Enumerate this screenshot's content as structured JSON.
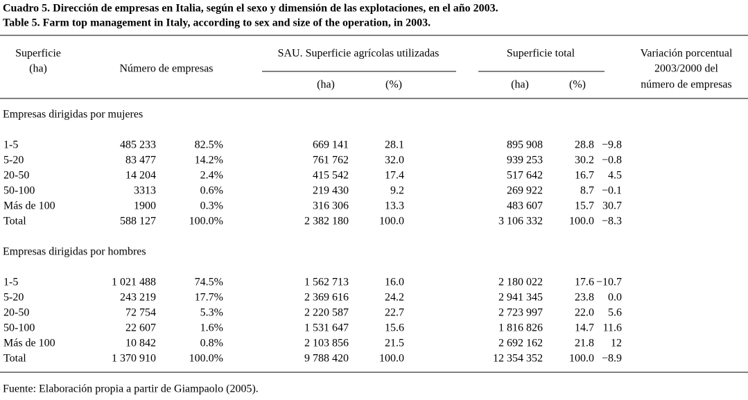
{
  "header": {
    "title_es": "Cuadro 5. Dirección de empresas en Italia, según el sexo y dimensión de las explotaciones, en el año 2003.",
    "title_en": "Table 5. Farm top management in Italy, according to sex and size of the operation, in 2003."
  },
  "table": {
    "columns": {
      "surface": [
        "Superficie",
        "(ha)"
      ],
      "firms": "Número de empresas",
      "sau": "SAU. Superficie agrícolas utilizadas",
      "sau_ha": "(ha)",
      "sau_pct": "(%)",
      "total": "Superficie total",
      "total_ha": "(ha)",
      "total_pct": "(%)",
      "variation": [
        "Variación porcentual",
        "2003/2000 del",
        "número de empresas"
      ]
    },
    "sections": [
      {
        "title": "Empresas dirigidas por mujeres",
        "rows": [
          [
            "1-5",
            "485 233",
            "82.5%",
            "669 141",
            "28.1",
            "895 908",
            "28.8",
            "−9.8"
          ],
          [
            "5-20",
            "83 477",
            "14.2%",
            "761 762",
            "32.0",
            "939 253",
            "30.2",
            "−0.8"
          ],
          [
            "20-50",
            "14 204",
            "2.4%",
            "415 542",
            "17.4",
            "517 642",
            "16.7",
            "4.5"
          ],
          [
            "50-100",
            "3313",
            "0.6%",
            "219 430",
            "9.2",
            "269 922",
            "8.7",
            "−0.1"
          ],
          [
            "Más de 100",
            "1900",
            "0.3%",
            "316 306",
            "13.3",
            "483 607",
            "15.7",
            "30.7"
          ],
          [
            "Total",
            "588 127",
            "100.0%",
            "2 382 180",
            "100.0",
            "3 106 332",
            "100.0",
            "−8.3"
          ]
        ]
      },
      {
        "title": "Empresas dirigidas por hombres",
        "rows": [
          [
            "1-5",
            "1 021 488",
            "74.5%",
            "1 562 713",
            "16.0",
            "2 180 022",
            "17.6",
            "−10.7"
          ],
          [
            "5-20",
            "243 219",
            "17.7%",
            "2 369 616",
            "24.2",
            "2 941 345",
            "23.8",
            "0.0"
          ],
          [
            "20-50",
            "72 754",
            "5.3%",
            "2 220 587",
            "22.7",
            "2 723 997",
            "22.0",
            "5.6"
          ],
          [
            "50-100",
            "22 607",
            "1.6%",
            "1 531 647",
            "15.6",
            "1 816 826",
            "14.7",
            "11.6"
          ],
          [
            "Más de 100",
            "10 842",
            "0.8%",
            "2 103 856",
            "21.5",
            "2 692 162",
            "21.8",
            "12"
          ],
          [
            "Total",
            "1 370 910",
            "100.0%",
            "9 788 420",
            "100.0",
            "12 354 352",
            "100.0",
            "−8.9"
          ]
        ]
      }
    ]
  },
  "footer": {
    "source": "Fuente: Elaboración propia a partir de Giampaolo (2005)."
  }
}
